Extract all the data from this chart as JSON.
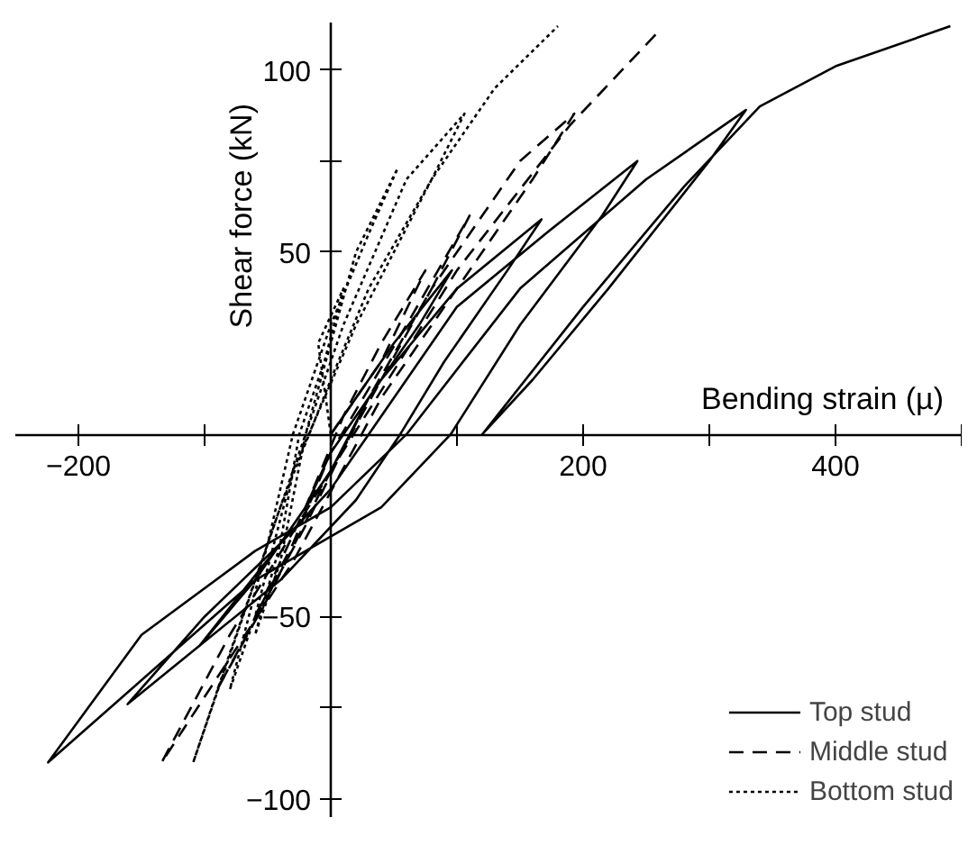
{
  "chart_data": {
    "type": "line",
    "xlabel": "Bending strain (µ)",
    "ylabel": "Shear force (kN)",
    "xlim": [
      -250,
      500
    ],
    "ylim": [
      -105,
      113
    ],
    "xticks": [
      {
        "value": -200,
        "label": "−200"
      },
      {
        "value": -100,
        "label": null
      },
      {
        "value": 100,
        "label": null
      },
      {
        "value": 200,
        "label": "200"
      },
      {
        "value": 300,
        "label": null
      },
      {
        "value": 400,
        "label": "400"
      },
      {
        "value": 500,
        "label": null
      }
    ],
    "yticks": [
      {
        "value": -100,
        "label": "−100"
      },
      {
        "value": -75,
        "label": null
      },
      {
        "value": -50,
        "label": "−50"
      },
      {
        "value": 50,
        "label": "50"
      },
      {
        "value": 75,
        "label": null
      },
      {
        "value": 100,
        "label": "100"
      }
    ],
    "grid": false,
    "legend": "bottom right",
    "marker": "none",
    "series": [
      {
        "name": "Top stud",
        "color": "#000000",
        "line_style": "solid",
        "x": [
          0,
          50,
          96,
          70,
          30,
          0,
          -40,
          -104,
          -60,
          -20,
          0,
          40,
          100,
          167,
          140,
          90,
          55,
          20,
          -40,
          -161,
          -100,
          -40,
          0,
          30,
          100,
          170,
          243,
          215,
          150,
          95,
          40,
          -60,
          -224,
          -150,
          -60,
          0,
          60,
          150,
          250,
          329,
          300,
          220,
          160,
          120,
          200,
          280,
          340,
          400,
          491
        ],
        "values": [
          0,
          25,
          45,
          30,
          10,
          -10,
          -30,
          -58,
          -40,
          -20,
          -5,
          15,
          40,
          59,
          45,
          20,
          0,
          -18,
          -40,
          -74,
          -50,
          -30,
          -15,
          0,
          35,
          55,
          75,
          60,
          30,
          0,
          -20,
          -40,
          -90,
          -55,
          -32,
          -20,
          0,
          40,
          70,
          89,
          75,
          40,
          15,
          0,
          35,
          68,
          90,
          101,
          112
        ]
      },
      {
        "name": "Middle stud",
        "color": "#000000",
        "line_style": "dashed",
        "x": [
          0,
          40,
          75,
          40,
          10,
          -20,
          -60,
          -30,
          0,
          60,
          110,
          80,
          30,
          -20,
          -90,
          -50,
          0,
          80,
          150,
          193,
          160,
          100,
          40,
          -30,
          -134,
          -80,
          0,
          100,
          190,
          261
        ],
        "values": [
          0,
          20,
          45,
          25,
          5,
          -20,
          -50,
          -30,
          -5,
          30,
          60,
          40,
          10,
          -25,
          -70,
          -45,
          -10,
          40,
          75,
          88,
          70,
          40,
          10,
          -35,
          -90,
          -55,
          -10,
          45,
          85,
          111
        ]
      },
      {
        "name": "Bottom stud",
        "color": "#000000",
        "line_style": "dotted",
        "x": [
          0,
          -10,
          10,
          -5,
          -25,
          -40,
          -60,
          -40,
          -20,
          20,
          53,
          30,
          0,
          -30,
          -50,
          -80,
          -60,
          -30,
          10,
          60,
          106,
          80,
          30,
          0,
          -40,
          -109,
          -80,
          -30,
          20,
          80,
          130,
          180
        ],
        "values": [
          0,
          25,
          40,
          20,
          0,
          -30,
          -55,
          -35,
          0,
          50,
          73,
          55,
          30,
          0,
          -30,
          -70,
          -50,
          -10,
          30,
          70,
          88,
          70,
          40,
          15,
          -20,
          -90,
          -60,
          -10,
          30,
          70,
          95,
          112
        ]
      }
    ]
  }
}
